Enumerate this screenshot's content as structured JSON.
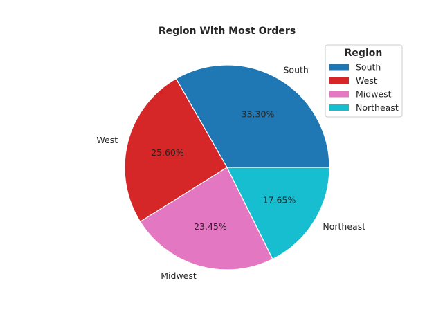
{
  "chart_data": {
    "type": "pie",
    "title": "Region With Most Orders",
    "categories": [
      "South",
      "West",
      "Midwest",
      "Northeast"
    ],
    "values": [
      33.3,
      25.6,
      23.45,
      17.65
    ],
    "pct_labels": [
      "33.30%",
      "25.60%",
      "23.45%",
      "17.65%"
    ],
    "colors": [
      "#1f77b4",
      "#d62728",
      "#e377c2",
      "#17becf"
    ],
    "legend": {
      "title": "Region",
      "placement": "top-right",
      "entries": [
        "South",
        "West",
        "Midwest",
        "Northeast"
      ]
    }
  }
}
